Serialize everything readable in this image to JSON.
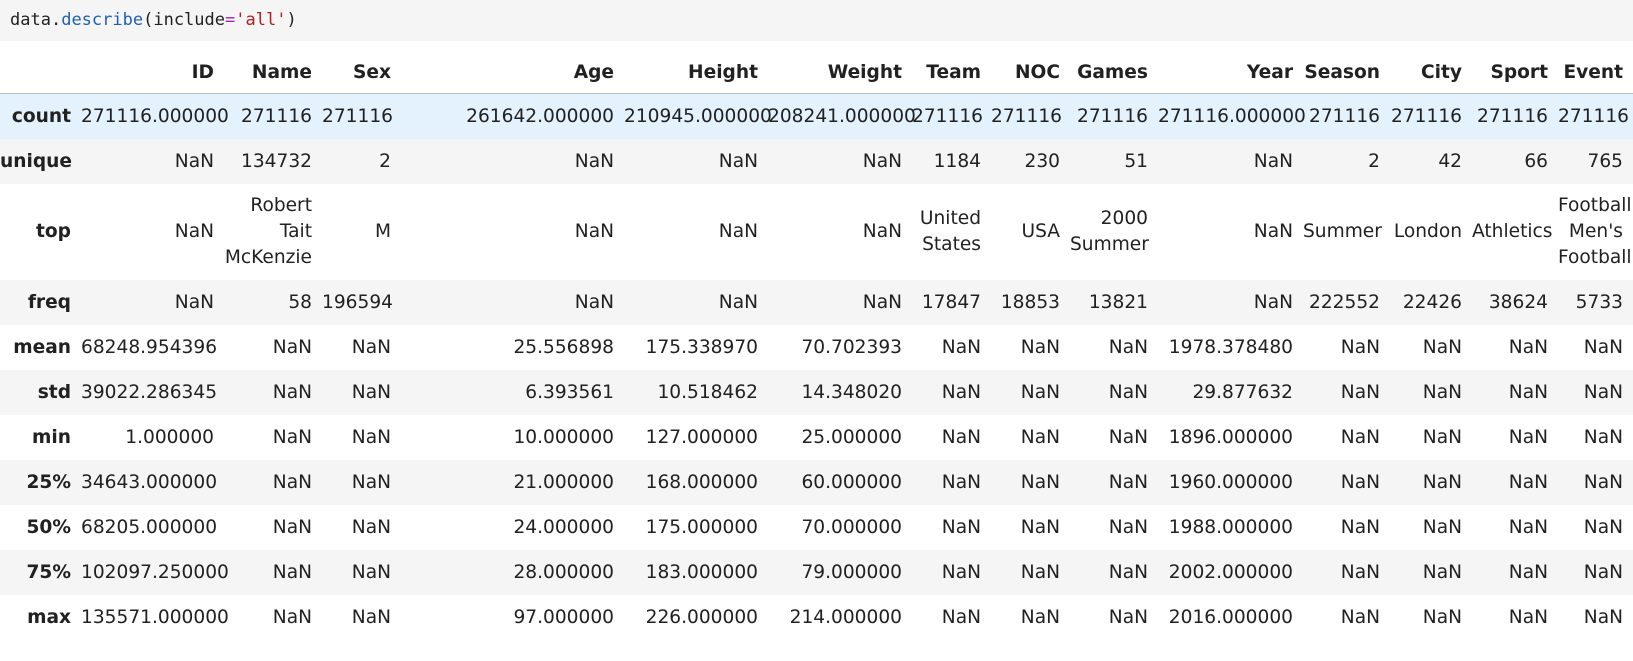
{
  "code": {
    "obj": "data",
    "dot": ".",
    "method": "describe",
    "open": "(",
    "kw": "include",
    "eq": "=",
    "arg": "'all'",
    "close": ")"
  },
  "table": {
    "columns": [
      "ID",
      "Name",
      "Sex",
      "Age",
      "Height",
      "Weight",
      "Team",
      "NOC",
      "Games",
      "Year",
      "Season",
      "City",
      "Sport",
      "Event"
    ],
    "rows": [
      {
        "label": "count",
        "cells": [
          "271116.000000",
          "271116",
          "271116",
          "261642.000000",
          "210945.000000",
          "208241.000000",
          "271116",
          "271116",
          "271116",
          "271116.000000",
          "271116",
          "271116",
          "271116",
          "271116"
        ]
      },
      {
        "label": "unique",
        "cells": [
          "NaN",
          "134732",
          "2",
          "NaN",
          "NaN",
          "NaN",
          "1184",
          "230",
          "51",
          "NaN",
          "2",
          "42",
          "66",
          "765"
        ]
      },
      {
        "label": "top",
        "cells": [
          "NaN",
          "Robert Tait McKenzie",
          "M",
          "NaN",
          "NaN",
          "NaN",
          "United States",
          "USA",
          "2000 Summer",
          "NaN",
          "Summer",
          "London",
          "Athletics",
          "Football Men's Football"
        ]
      },
      {
        "label": "freq",
        "cells": [
          "NaN",
          "58",
          "196594",
          "NaN",
          "NaN",
          "NaN",
          "17847",
          "18853",
          "13821",
          "NaN",
          "222552",
          "22426",
          "38624",
          "5733"
        ]
      },
      {
        "label": "mean",
        "cells": [
          "68248.954396",
          "NaN",
          "NaN",
          "25.556898",
          "175.338970",
          "70.702393",
          "NaN",
          "NaN",
          "NaN",
          "1978.378480",
          "NaN",
          "NaN",
          "NaN",
          "NaN"
        ]
      },
      {
        "label": "std",
        "cells": [
          "39022.286345",
          "NaN",
          "NaN",
          "6.393561",
          "10.518462",
          "14.348020",
          "NaN",
          "NaN",
          "NaN",
          "29.877632",
          "NaN",
          "NaN",
          "NaN",
          "NaN"
        ]
      },
      {
        "label": "min",
        "cells": [
          "1.000000",
          "NaN",
          "NaN",
          "10.000000",
          "127.000000",
          "25.000000",
          "NaN",
          "NaN",
          "NaN",
          "1896.000000",
          "NaN",
          "NaN",
          "NaN",
          "NaN"
        ]
      },
      {
        "label": "25%",
        "cells": [
          "34643.000000",
          "NaN",
          "NaN",
          "21.000000",
          "168.000000",
          "60.000000",
          "NaN",
          "NaN",
          "NaN",
          "1960.000000",
          "NaN",
          "NaN",
          "NaN",
          "NaN"
        ]
      },
      {
        "label": "50%",
        "cells": [
          "68205.000000",
          "NaN",
          "NaN",
          "24.000000",
          "175.000000",
          "70.000000",
          "NaN",
          "NaN",
          "NaN",
          "1988.000000",
          "NaN",
          "NaN",
          "NaN",
          "NaN"
        ]
      },
      {
        "label": "75%",
        "cells": [
          "102097.250000",
          "NaN",
          "NaN",
          "28.000000",
          "183.000000",
          "79.000000",
          "NaN",
          "NaN",
          "NaN",
          "2002.000000",
          "NaN",
          "NaN",
          "NaN",
          "NaN"
        ]
      },
      {
        "label": "max",
        "cells": [
          "135571.000000",
          "NaN",
          "NaN",
          "97.000000",
          "226.000000",
          "214.000000",
          "NaN",
          "NaN",
          "NaN",
          "2016.000000",
          "NaN",
          "NaN",
          "NaN",
          "NaN"
        ]
      }
    ]
  },
  "colors": {
    "highlight_row": "#e3f2fd",
    "stripe": "#f5f5f5",
    "code_bg": "#f5f5f5"
  }
}
